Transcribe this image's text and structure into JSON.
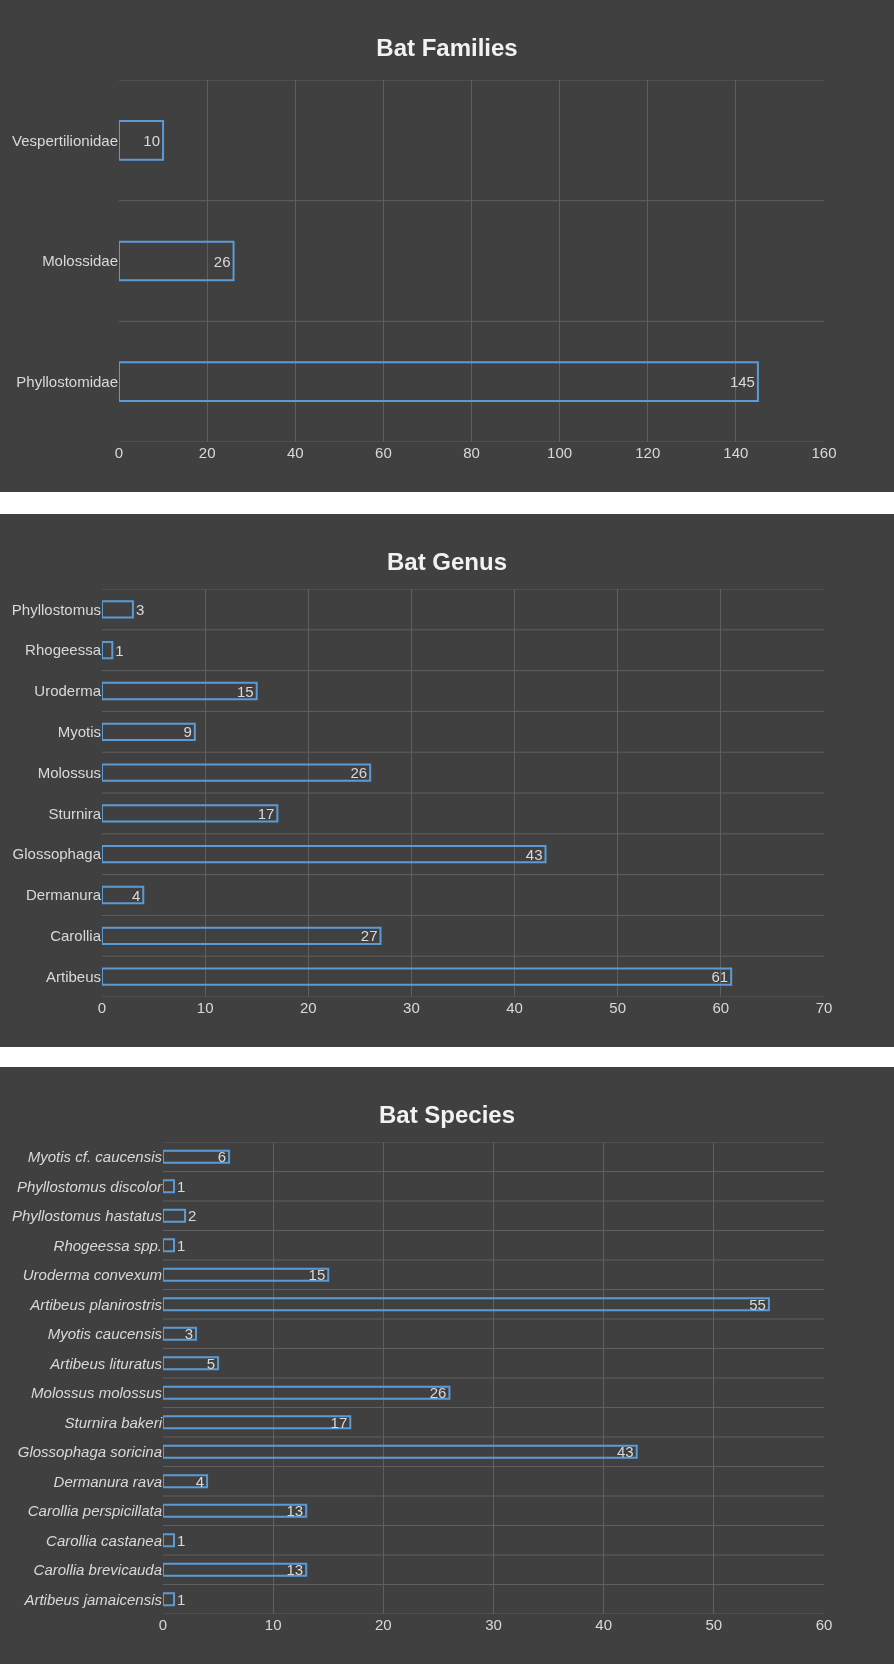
{
  "chart_data": [
    {
      "type": "bar",
      "orientation": "horizontal",
      "title": "Bat Families",
      "categories": [
        "Vespertilionidae",
        "Molossidae",
        "Phyllostomidae"
      ],
      "values": [
        10,
        26,
        145
      ],
      "color": "#5b9bd5",
      "xlim": [
        0,
        160
      ],
      "xticks": [
        0,
        20,
        40,
        60,
        80,
        100,
        120,
        140,
        160
      ],
      "grid": true,
      "data_labels": true
    },
    {
      "type": "bar",
      "orientation": "horizontal",
      "title": "Bat Genus",
      "categories": [
        "Phyllostomus",
        "Rhogeessa",
        "Uroderma",
        "Myotis",
        "Molossus",
        "Sturnira",
        "Glossophaga",
        "Dermanura",
        "Carollia",
        "Artibeus"
      ],
      "values": [
        3,
        1,
        15,
        9,
        26,
        17,
        43,
        4,
        27,
        61
      ],
      "color": "#5b9bd5",
      "xlim": [
        0,
        70
      ],
      "xticks": [
        0,
        10,
        20,
        30,
        40,
        50,
        60,
        70
      ],
      "grid": true,
      "data_labels": true
    },
    {
      "type": "bar",
      "orientation": "horizontal",
      "title": "Bat Species",
      "categories": [
        "Myotis cf. caucensis",
        "Phyllostomus discolor",
        "Phyllostomus hastatus",
        "Rhogeessa spp.",
        "Uroderma convexum",
        "Artibeus planirostris",
        "Myotis caucensis",
        "Artibeus lituratus",
        "Molossus molossus",
        "Sturnira bakeri",
        "Glossophaga soricina",
        "Dermanura rava",
        "Carollia perspicillata",
        "Carollia castanea",
        "Carollia brevicauda",
        "Artibeus jamaicensis"
      ],
      "values": [
        6,
        1,
        2,
        1,
        15,
        55,
        3,
        5,
        26,
        17,
        43,
        4,
        13,
        1,
        13,
        1
      ],
      "color": "#5b9bd5",
      "xlim": [
        0,
        60
      ],
      "xticks": [
        0,
        10,
        20,
        30,
        40,
        50,
        60
      ],
      "grid": true,
      "data_labels": true
    }
  ]
}
